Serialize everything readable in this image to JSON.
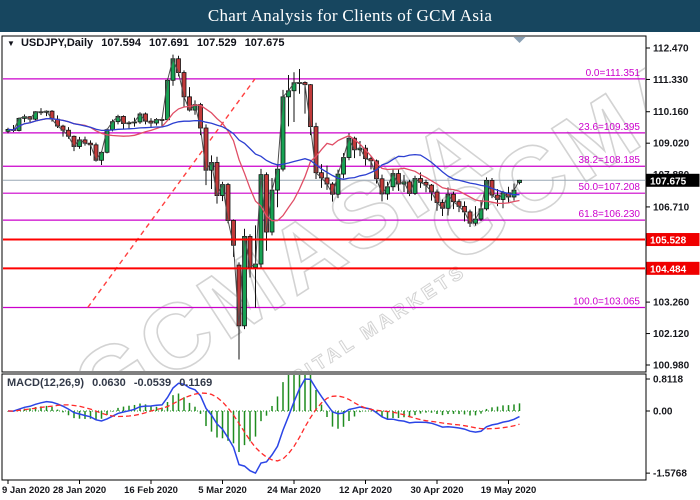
{
  "title_bar": {
    "text": "Chart Analysis for Clients of GCM Asia",
    "bg": "#17465f"
  },
  "symbol_header": {
    "collapse_icon": "▼",
    "symbol": "USDJPY,Daily",
    "open": "107.594",
    "high": "107.691",
    "low": "107.529",
    "close": "107.675"
  },
  "macd_header": {
    "label": "MACD(12,26,9)",
    "macd": "0.0630",
    "signal": "-0.0539",
    "histogram": "0.1169"
  },
  "watermark": {
    "text": "GCMASIA",
    "subtext": "GLOBAL CAPITAL MARKETS"
  },
  "chart_data": {
    "type": "candlestick",
    "title": "USDJPY Daily with Fibonacci retracement, support lines and MACD(12,26,9)",
    "symbol": "USDJPY",
    "timeframe": "Daily",
    "current_price": 107.675,
    "price_ticks": [
      112.47,
      111.33,
      110.16,
      109.02,
      107.88,
      106.71,
      105.57,
      104.43,
      103.26,
      102.12,
      100.98
    ],
    "price_badges": [
      {
        "label": "107.675",
        "value": 107.675,
        "bg": "#000000",
        "fg": "#ffffff"
      },
      {
        "label": "105.528",
        "value": 105.528,
        "bg": "#f00000",
        "fg": "#ffffff"
      },
      {
        "label": "104.484",
        "value": 104.484,
        "bg": "#f00000",
        "fg": "#ffffff"
      }
    ],
    "x_ticks": [
      {
        "label": "9 Jan 2020",
        "i": 0
      },
      {
        "label": "28 Jan 2020",
        "i": 13
      },
      {
        "label": "16 Feb 2020",
        "i": 26
      },
      {
        "label": "5 Mar 2020",
        "i": 39
      },
      {
        "label": "24 Mar 2020",
        "i": 52
      },
      {
        "label": "12 Apr 2020",
        "i": 65
      },
      {
        "label": "30 Apr 2020",
        "i": 78
      },
      {
        "label": "19 May 2020",
        "i": 91
      }
    ],
    "fib_levels": [
      {
        "label": "0.0=111.351",
        "value": 111.351
      },
      {
        "label": "23.6=109.395",
        "value": 109.395
      },
      {
        "label": "38.2=108.185",
        "value": 108.185
      },
      {
        "label": "50.0=107.208",
        "value": 107.208
      },
      {
        "label": "61.8=106.230",
        "value": 106.23
      },
      {
        "label": "100.0=103.065",
        "value": 103.065
      }
    ],
    "fib_baseline": {
      "i1": 14.5,
      "v1": 103.065,
      "i2": 44.9,
      "v2": 111.351
    },
    "support_lines": [
      {
        "value": 105.528
      },
      {
        "value": 104.484
      }
    ],
    "ylim": [
      100.73,
      112.9
    ],
    "macd": {
      "y_tick_labels": [
        "0.8118",
        "0.00",
        "-1.5768"
      ],
      "y_tick_values": [
        0.8118,
        0,
        -1.5768
      ],
      "max": 0.8118,
      "min": -1.5768,
      "last_macd": 0.063,
      "last_signal": -0.0539,
      "last_histogram": 0.1169
    },
    "overlays": {
      "fast_close_line": true,
      "ma_mid_period": 13,
      "ma_slow_period": 26
    },
    "colors": {
      "up": "#17a253",
      "down": "#c13a3a",
      "wick": "#111111",
      "ma_fast": "#4d4d4d",
      "ma_mid": "#e04e66",
      "ma_slow": "#2c3fd1",
      "macd_line": "#2b45e6",
      "macd_signal": "#ff2a2a",
      "macd_hist": "#1f8c1f",
      "fib": "#cc00cc",
      "support": "#ff0000",
      "current_line": "#9aa8b5"
    },
    "candles": [
      [
        109.45,
        109.58,
        109.38,
        109.52
      ],
      [
        109.52,
        109.68,
        109.42,
        109.48
      ],
      [
        109.48,
        109.95,
        109.45,
        109.92
      ],
      [
        109.92,
        110.06,
        109.78,
        109.98
      ],
      [
        109.98,
        110.0,
        109.79,
        109.89
      ],
      [
        109.89,
        110.18,
        109.85,
        110.16
      ],
      [
        110.16,
        110.29,
        110.04,
        110.14
      ],
      [
        110.14,
        110.21,
        110.0,
        110.18
      ],
      [
        110.18,
        110.22,
        109.8,
        109.89
      ],
      [
        109.89,
        110.03,
        109.57,
        109.64
      ],
      [
        109.64,
        109.69,
        109.26,
        109.49
      ],
      [
        109.49,
        109.6,
        109.18,
        109.27
      ],
      [
        109.27,
        109.3,
        108.73,
        108.9
      ],
      [
        108.9,
        109.25,
        108.82,
        109.14
      ],
      [
        109.14,
        109.26,
        108.93,
        109.02
      ],
      [
        109.02,
        109.12,
        108.57,
        108.96
      ],
      [
        108.96,
        109.04,
        108.35,
        108.4
      ],
      [
        108.4,
        108.73,
        108.23,
        108.69
      ],
      [
        108.69,
        109.55,
        108.65,
        109.51
      ],
      [
        109.51,
        109.88,
        109.45,
        109.8
      ],
      [
        109.8,
        110.05,
        109.7,
        109.99
      ],
      [
        109.99,
        110.03,
        109.53,
        109.73
      ],
      [
        109.73,
        109.82,
        109.54,
        109.76
      ],
      [
        109.76,
        109.94,
        109.62,
        109.79
      ],
      [
        109.79,
        110.14,
        109.72,
        110.08
      ],
      [
        110.08,
        110.13,
        109.7,
        109.82
      ],
      [
        109.82,
        109.93,
        109.61,
        109.75
      ],
      [
        109.75,
        109.93,
        109.66,
        109.88
      ],
      [
        109.88,
        109.95,
        109.62,
        109.87
      ],
      [
        109.87,
        111.36,
        109.84,
        111.3
      ],
      [
        111.3,
        112.23,
        111.1,
        112.08
      ],
      [
        112.08,
        112.19,
        111.44,
        111.58
      ],
      [
        111.58,
        111.66,
        110.32,
        110.7
      ],
      [
        110.7,
        111.05,
        110.17,
        110.22
      ],
      [
        110.22,
        110.57,
        110.05,
        110.42
      ],
      [
        110.42,
        110.48,
        109.31,
        109.57
      ],
      [
        109.57,
        109.7,
        107.5,
        108.04
      ],
      [
        108.04,
        108.58,
        107.36,
        108.32
      ],
      [
        108.32,
        108.53,
        106.83,
        107.12
      ],
      [
        107.12,
        107.62,
        106.92,
        107.52
      ],
      [
        107.52,
        107.58,
        106.12,
        106.22
      ],
      [
        106.22,
        106.26,
        104.9,
        105.32
      ],
      [
        104.6,
        104.7,
        101.18,
        102.4
      ],
      [
        102.4,
        105.92,
        102.28,
        105.64
      ],
      [
        105.64,
        105.72,
        104.15,
        104.52
      ],
      [
        104.52,
        106.04,
        103.06,
        104.64
      ],
      [
        104.64,
        108.09,
        104.48,
        107.88
      ],
      [
        107.88,
        107.96,
        105.12,
        105.8
      ],
      [
        105.8,
        107.76,
        105.68,
        107.32
      ],
      [
        107.32,
        108.26,
        106.7,
        108.08
      ],
      [
        108.08,
        110.95,
        108.0,
        110.7
      ],
      [
        110.7,
        111.49,
        109.63,
        110.92
      ],
      [
        110.92,
        111.59,
        109.79,
        111.21
      ],
      [
        111.21,
        111.71,
        110.81,
        111.22
      ],
      [
        111.22,
        111.26,
        110.09,
        111.14
      ],
      [
        111.14,
        111.16,
        109.31,
        109.62
      ],
      [
        109.62,
        109.76,
        107.72,
        107.95
      ],
      [
        107.95,
        108.26,
        107.4,
        107.76
      ],
      [
        107.76,
        108.21,
        107.33,
        107.54
      ],
      [
        107.54,
        107.61,
        106.9,
        107.17
      ],
      [
        107.17,
        108.06,
        107.03,
        107.9
      ],
      [
        107.9,
        108.66,
        107.75,
        108.5
      ],
      [
        108.5,
        109.38,
        108.4,
        109.2
      ],
      [
        109.2,
        109.26,
        108.48,
        108.78
      ],
      [
        108.78,
        109.1,
        108.55,
        108.84
      ],
      [
        108.84,
        108.96,
        108.21,
        108.46
      ],
      [
        108.46,
        108.56,
        108.07,
        108.38
      ],
      [
        108.38,
        108.43,
        107.56,
        107.73
      ],
      [
        107.73,
        107.88,
        106.91,
        107.18
      ],
      [
        107.18,
        107.62,
        106.97,
        107.44
      ],
      [
        107.44,
        108.08,
        107.29,
        107.92
      ],
      [
        107.92,
        108.08,
        107.29,
        107.54
      ],
      [
        107.54,
        107.87,
        107.25,
        107.62
      ],
      [
        107.62,
        107.69,
        107.1,
        107.2
      ],
      [
        107.2,
        107.84,
        107.14,
        107.74
      ],
      [
        107.74,
        107.96,
        107.4,
        107.6
      ],
      [
        107.6,
        107.7,
        107.24,
        107.5
      ],
      [
        107.5,
        107.54,
        106.94,
        107.25
      ],
      [
        107.25,
        107.34,
        106.57,
        106.87
      ],
      [
        106.87,
        106.98,
        106.38,
        106.66
      ],
      [
        106.66,
        107.42,
        106.4,
        107.17
      ],
      [
        107.17,
        107.26,
        106.63,
        106.9
      ],
      [
        106.9,
        106.99,
        106.52,
        106.73
      ],
      [
        106.73,
        106.91,
        106.18,
        106.53
      ],
      [
        106.53,
        106.61,
        105.98,
        106.12
      ],
      [
        106.12,
        106.74,
        106.03,
        106.27
      ],
      [
        106.27,
        106.96,
        106.2,
        106.64
      ],
      [
        106.64,
        107.78,
        106.58,
        107.67
      ],
      [
        107.67,
        107.76,
        107.03,
        107.14
      ],
      [
        107.14,
        107.36,
        106.74,
        106.98
      ],
      [
        106.98,
        107.29,
        106.66,
        107.22
      ],
      [
        107.22,
        107.44,
        106.85,
        107.07
      ],
      [
        107.07,
        107.56,
        106.94,
        107.32
      ],
      [
        107.594,
        107.691,
        107.529,
        107.675
      ]
    ]
  }
}
